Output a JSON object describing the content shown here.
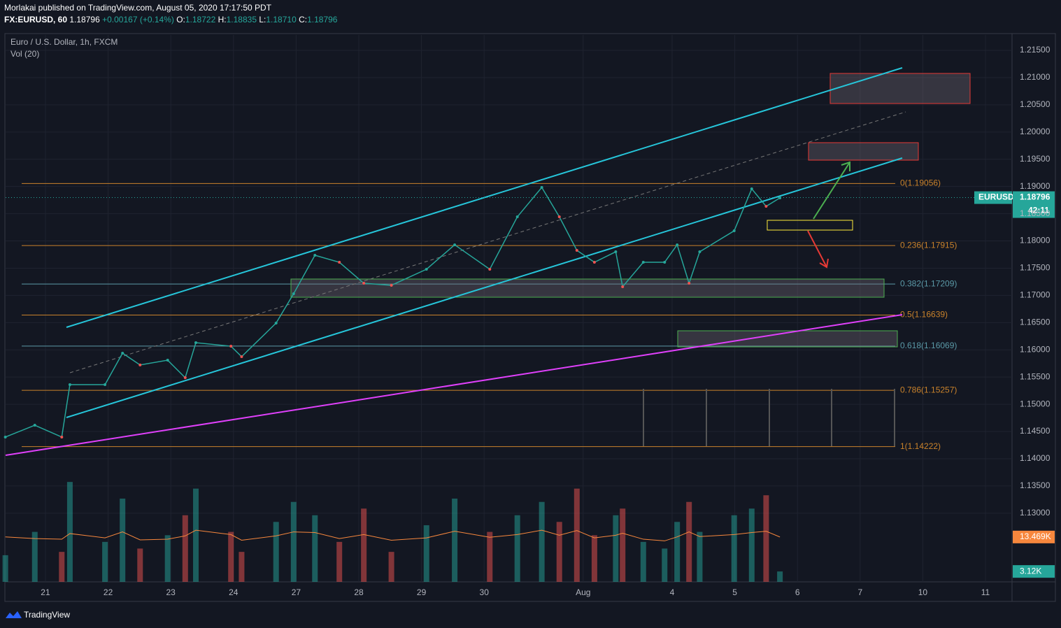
{
  "chart_data": {
    "type": "line",
    "header": {
      "publisher": "Morlakai published on TradingView.com, August 05, 2020 17:17:50 PDT",
      "symbol": "FX:EURUSD, 60",
      "last": "1.18796",
      "change": "+0.00167 (+0.14%)",
      "o": "1.18722",
      "h": "1.18835",
      "l": "1.18710",
      "c": "1.18796"
    },
    "title": "Euro / U.S. Dollar, 1h, FXCM",
    "volume_label": "Vol (20)",
    "footer": "TradingView",
    "xlim": [
      -0.636,
      15.424
    ],
    "ylim": [
      1.11739,
      1.21783
    ],
    "xticks": [
      {
        "value": 0,
        "label": "21"
      },
      {
        "value": 1,
        "label": "22"
      },
      {
        "value": 2,
        "label": "23"
      },
      {
        "value": 3,
        "label": "24"
      },
      {
        "value": 4,
        "label": "27"
      },
      {
        "value": 5,
        "label": "28"
      },
      {
        "value": 6,
        "label": "29"
      },
      {
        "value": 7,
        "label": "30"
      },
      {
        "value": 8.58,
        "label": "Aug"
      },
      {
        "value": 10,
        "label": "4"
      },
      {
        "value": 11,
        "label": "5"
      },
      {
        "value": 12,
        "label": "6"
      },
      {
        "value": 13,
        "label": "7"
      },
      {
        "value": 14,
        "label": "10"
      },
      {
        "value": 15,
        "label": "11"
      }
    ],
    "yticks": [
      {
        "value": 1.215,
        "label": "1.21500"
      },
      {
        "value": 1.21,
        "label": "1.21000"
      },
      {
        "value": 1.205,
        "label": "1.20500"
      },
      {
        "value": 1.2,
        "label": "1.20000"
      },
      {
        "value": 1.195,
        "label": "1.19500"
      },
      {
        "value": 1.19,
        "label": "1.19000"
      },
      {
        "value": 1.185,
        "label": "1.18500"
      },
      {
        "value": 1.18,
        "label": "1.18000"
      },
      {
        "value": 1.175,
        "label": "1.17500"
      },
      {
        "value": 1.17,
        "label": "1.17000"
      },
      {
        "value": 1.165,
        "label": "1.16500"
      },
      {
        "value": 1.16,
        "label": "1.16000"
      },
      {
        "value": 1.155,
        "label": "1.15500"
      },
      {
        "value": 1.15,
        "label": "1.15000"
      },
      {
        "value": 1.145,
        "label": "1.14500"
      },
      {
        "value": 1.14,
        "label": "1.14000"
      },
      {
        "value": 1.135,
        "label": "1.13500"
      },
      {
        "value": 1.13,
        "label": "1.13000"
      }
    ],
    "grid": true,
    "series": [
      {
        "name": "EURUSD",
        "color": "#26a69a",
        "x": [
          -0.64,
          -0.17,
          0.26,
          0.39,
          0.95,
          1.23,
          1.51,
          1.95,
          2.23,
          2.4,
          2.96,
          3.13,
          3.68,
          3.96,
          4.3,
          4.69,
          5.08,
          5.52,
          6.08,
          6.53,
          7.09,
          7.53,
          7.92,
          8.2,
          8.48,
          8.76,
          9.1,
          9.21,
          9.54,
          9.88,
          10.08,
          10.27,
          10.44,
          10.99,
          11.27,
          11.5,
          11.72
        ],
        "values": [
          1.14398,
          1.14616,
          1.14398,
          1.15361,
          1.15361,
          1.15939,
          1.15722,
          1.1581,
          1.15489,
          1.16131,
          1.16067,
          1.15875,
          1.16491,
          1.1703,
          1.17737,
          1.17608,
          1.17223,
          1.17185,
          1.1748,
          1.17929,
          1.1748,
          1.18443,
          1.18983,
          1.18443,
          1.17827,
          1.17608,
          1.17801,
          1.17159,
          1.17608,
          1.17608,
          1.17929,
          1.17223,
          1.17801,
          1.18186,
          1.18957,
          1.18636,
          1.1879
        ],
        "volume": [
          8000,
          15000,
          9000,
          30000,
          12000,
          25000,
          10000,
          14000,
          20000,
          28000,
          15000,
          9000,
          18000,
          24000,
          20000,
          12000,
          22000,
          9000,
          17000,
          25000,
          15000,
          20000,
          24000,
          18000,
          28000,
          14000,
          20000,
          22000,
          12000,
          10000,
          18000,
          24000,
          15000,
          20000,
          22000,
          26000,
          3120
        ],
        "volume_ma": [
          13500,
          13000,
          12800,
          14500,
          13200,
          15000,
          12600,
          12800,
          13800,
          15500,
          14200,
          12500,
          13800,
          15000,
          14800,
          13000,
          14200,
          12500,
          13200,
          15200,
          13400,
          14200,
          15500,
          14000,
          15400,
          13200,
          14000,
          14600,
          12800,
          12300,
          13500,
          15000,
          13600,
          14200,
          14800,
          15200,
          13469
        ]
      }
    ],
    "fib_levels": [
      {
        "label": "0(1.19056)",
        "value": 1.19056,
        "color": "#c9822b"
      },
      {
        "label": "0.236(1.17915)",
        "value": 1.17915,
        "color": "#c9822b"
      },
      {
        "label": "0.382(1.17209)",
        "value": 1.17209,
        "color": "#5b9aa8"
      },
      {
        "label": "0.5(1.16639)",
        "value": 1.16639,
        "color": "#c9822b"
      },
      {
        "label": "0.618(1.16069)",
        "value": 1.16069,
        "color": "#5b9aa8"
      },
      {
        "label": "0.786(1.15257)",
        "value": 1.15257,
        "color": "#c9822b"
      },
      {
        "label": "1(1.14222)",
        "value": 1.14222,
        "color": "#c9822b"
      }
    ],
    "price_tag": {
      "name": "EURUSD",
      "label": "1.18796",
      "value": 1.18796,
      "timer": "42:11"
    },
    "volume_tags": [
      {
        "label": "13.469K",
        "value": 13469,
        "color": "#f7873d"
      },
      {
        "label": "3.12K",
        "value": 3120,
        "color": "#26a69a"
      }
    ]
  }
}
